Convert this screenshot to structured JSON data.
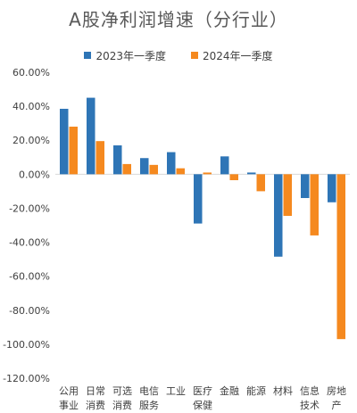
{
  "colors": {
    "series1": "#2e75b6",
    "series2": "#f5891f",
    "axis": "#d9d9d9",
    "text": "#404040"
  },
  "chart_data": {
    "type": "bar",
    "title": "A股净利润增速（分行业）",
    "xlabel": "",
    "ylabel": "",
    "ylim": [
      -120,
      60
    ],
    "yticks": [
      60,
      40,
      20,
      0,
      -20,
      -40,
      -60,
      -80,
      -100,
      -120
    ],
    "ytick_labels": [
      "60.00%",
      "40.00%",
      "20.00%",
      "0.00%",
      "-20.00%",
      "-40.00%",
      "-60.00%",
      "-80.00%",
      "-100.00%",
      "-120.00%"
    ],
    "grid": false,
    "legend_position": "top",
    "categories": [
      [
        "公用",
        "事业"
      ],
      [
        "日常",
        "消费"
      ],
      [
        "可选",
        "消费"
      ],
      [
        "电信",
        "服务"
      ],
      [
        "工业"
      ],
      [
        "医疗",
        "保健"
      ],
      [
        "金融"
      ],
      [
        "能源"
      ],
      [
        "材料"
      ],
      [
        "信息",
        "技术"
      ],
      [
        "房地",
        "产"
      ]
    ],
    "series": [
      {
        "name": "2023年一季度",
        "values": [
          38.5,
          45,
          17,
          9.5,
          13,
          -29,
          10.5,
          1,
          -48.5,
          -14,
          -16.5
        ]
      },
      {
        "name": "2024年一季度",
        "values": [
          28,
          19.5,
          6,
          5.5,
          3.5,
          1,
          -3.5,
          -10,
          -24.5,
          -36,
          -97
        ]
      }
    ]
  }
}
